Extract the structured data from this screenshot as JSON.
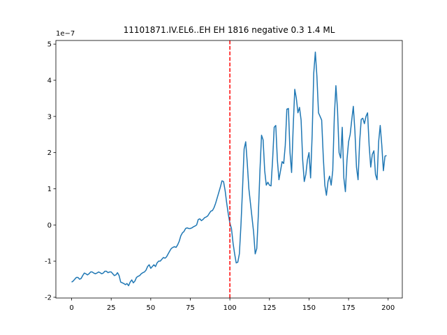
{
  "chart_data": {
    "type": "line",
    "title": "11101871.IV.EL6..EH EH 1816 negative 0.3 1.4 ML",
    "y_offset_label": "1e−7",
    "x": [
      0,
      1,
      2,
      3,
      4,
      5,
      6,
      7,
      8,
      9,
      10,
      11,
      12,
      13,
      14,
      15,
      16,
      17,
      18,
      19,
      20,
      21,
      22,
      23,
      24,
      25,
      26,
      27,
      28,
      29,
      30,
      31,
      32,
      33,
      34,
      35,
      36,
      37,
      38,
      39,
      40,
      41,
      42,
      43,
      44,
      45,
      46,
      47,
      48,
      49,
      50,
      51,
      52,
      53,
      54,
      55,
      56,
      57,
      58,
      59,
      60,
      61,
      62,
      63,
      64,
      65,
      66,
      67,
      68,
      69,
      70,
      71,
      72,
      73,
      74,
      75,
      76,
      77,
      78,
      79,
      80,
      81,
      82,
      83,
      84,
      85,
      86,
      87,
      88,
      89,
      90,
      91,
      92,
      93,
      94,
      95,
      96,
      97,
      98,
      99,
      100,
      101,
      102,
      103,
      104,
      105,
      106,
      107,
      108,
      109,
      110,
      111,
      112,
      113,
      114,
      115,
      116,
      117,
      118,
      119,
      120,
      121,
      122,
      123,
      124,
      125,
      126,
      127,
      128,
      129,
      130,
      131,
      132,
      133,
      134,
      135,
      136,
      137,
      138,
      139,
      140,
      141,
      142,
      143,
      144,
      145,
      146,
      147,
      148,
      149,
      150,
      151,
      152,
      153,
      154,
      155,
      156,
      157,
      158,
      159,
      160,
      161,
      162,
      163,
      164,
      165,
      166,
      167,
      168,
      169,
      170,
      171,
      172,
      173,
      174,
      175,
      176,
      177,
      178,
      179,
      180,
      181,
      182,
      183,
      184,
      185,
      186,
      187,
      188,
      189,
      190,
      191,
      192,
      193,
      194,
      195,
      196,
      197,
      198,
      199
    ],
    "series": [
      {
        "color": "#1f77b4",
        "values": [
          -1.58,
          -1.55,
          -1.5,
          -1.45,
          -1.45,
          -1.5,
          -1.48,
          -1.4,
          -1.33,
          -1.35,
          -1.38,
          -1.35,
          -1.3,
          -1.3,
          -1.33,
          -1.35,
          -1.33,
          -1.3,
          -1.32,
          -1.35,
          -1.33,
          -1.28,
          -1.28,
          -1.32,
          -1.3,
          -1.3,
          -1.35,
          -1.4,
          -1.38,
          -1.32,
          -1.4,
          -1.58,
          -1.6,
          -1.62,
          -1.65,
          -1.62,
          -1.68,
          -1.58,
          -1.52,
          -1.6,
          -1.55,
          -1.45,
          -1.42,
          -1.4,
          -1.35,
          -1.32,
          -1.3,
          -1.25,
          -1.15,
          -1.1,
          -1.2,
          -1.15,
          -1.1,
          -1.15,
          -1.05,
          -1.0,
          -1.0,
          -0.95,
          -0.9,
          -0.92,
          -0.88,
          -0.8,
          -0.72,
          -0.65,
          -0.62,
          -0.6,
          -0.62,
          -0.55,
          -0.45,
          -0.3,
          -0.22,
          -0.18,
          -0.1,
          -0.08,
          -0.1,
          -0.1,
          -0.08,
          -0.05,
          -0.03,
          0.0,
          0.15,
          0.17,
          0.12,
          0.15,
          0.2,
          0.22,
          0.25,
          0.32,
          0.38,
          0.4,
          0.48,
          0.6,
          0.75,
          0.9,
          1.05,
          1.22,
          1.2,
          0.95,
          0.6,
          0.3,
          0.05,
          -0.1,
          -0.5,
          -0.8,
          -1.05,
          -1.03,
          -0.8,
          0.0,
          1.0,
          2.1,
          2.3,
          1.7,
          1.0,
          0.6,
          0.2,
          -0.2,
          -0.8,
          -0.65,
          0.3,
          1.5,
          2.48,
          2.35,
          1.5,
          1.1,
          1.18,
          1.1,
          1.08,
          1.8,
          2.7,
          2.75,
          1.8,
          1.25,
          1.5,
          1.75,
          1.7,
          2.2,
          3.2,
          3.22,
          2.0,
          1.45,
          2.7,
          3.75,
          3.5,
          3.1,
          3.25,
          2.9,
          1.8,
          1.2,
          1.4,
          1.8,
          2.0,
          1.3,
          2.5,
          4.2,
          4.78,
          4.1,
          3.1,
          3.0,
          2.9,
          1.9,
          1.1,
          0.82,
          1.2,
          1.35,
          1.1,
          1.5,
          3.0,
          3.85,
          3.2,
          2.0,
          1.85,
          2.7,
          1.3,
          0.92,
          1.8,
          2.3,
          2.5,
          2.9,
          3.28,
          2.6,
          1.6,
          1.25,
          2.3,
          2.92,
          2.95,
          2.8,
          3.0,
          3.1,
          2.2,
          1.6,
          1.95,
          2.05,
          1.4,
          1.25,
          2.3,
          2.75,
          2.2,
          1.5,
          1.9,
          1.92
        ]
      }
    ],
    "vline": {
      "x": 100,
      "color": "#ff0000"
    },
    "xlim": [
      -9.95,
      208.95
    ],
    "xticks": [
      0,
      25,
      50,
      75,
      100,
      125,
      150,
      175,
      200
    ],
    "ylim": [
      -2.02,
      5.1
    ],
    "yticks": [
      -2,
      -1,
      0,
      1,
      2,
      3,
      4,
      5
    ]
  }
}
